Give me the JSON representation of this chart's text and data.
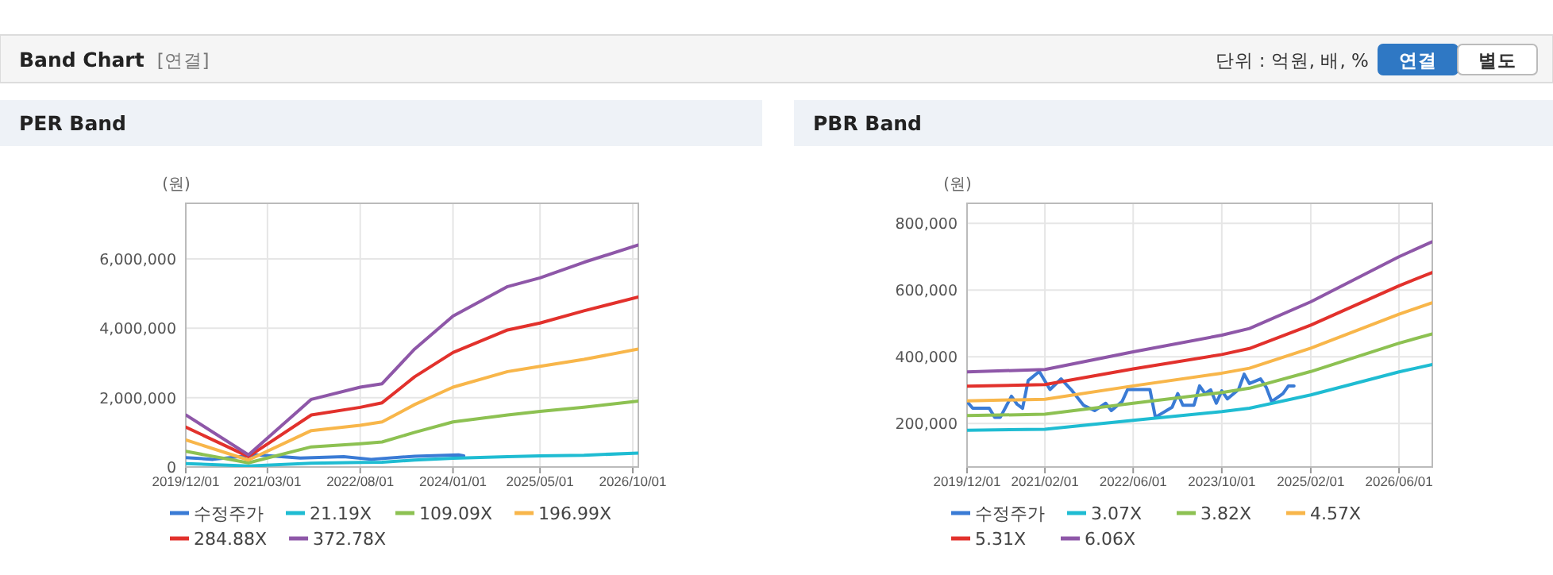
{
  "chart_data": [
    {
      "type": "other",
      "title": "Band Chart",
      "subtitle": "[연결]",
      "annotations": [
        "단위 : 억원, 배, %",
        "연결",
        "별도"
      ]
    },
    {
      "type": "line",
      "title": "PER Band",
      "ylabel": "(원)",
      "grid": true,
      "legend": "bottom",
      "marker": "none",
      "line_style": "solid",
      "xlim": [
        "2019-12-01",
        "2026-11-01"
      ],
      "xticks": [
        {
          "value": "2019-12-01",
          "label": "2019/12/01"
        },
        {
          "value": "2021-03-01",
          "label": "2021/03/01"
        },
        {
          "value": "2022-08-01",
          "label": "2022/08/01"
        },
        {
          "value": "2024-01-01",
          "label": "2024/01/01"
        },
        {
          "value": "2025-05-01",
          "label": "2025/05/01"
        },
        {
          "value": "2026-10-01",
          "label": "2026/10/01"
        }
      ],
      "ylim": [
        0,
        7600000
      ],
      "yticks": [
        0,
        {
          "value": 2000000,
          "label": "2,000,000"
        },
        {
          "value": 4000000,
          "label": "4,000,000"
        },
        {
          "value": 6000000,
          "label": "6,000,000"
        }
      ],
      "series": [
        {
          "name": "수정주가",
          "color": "#3a7bd5",
          "x": [
            "2019-12-01",
            "2020-05-01",
            "2021-01-01",
            "2021-09-01",
            "2022-05-01",
            "2022-10-01",
            "2023-06-01",
            "2024-02-01",
            "2024-03-01"
          ],
          "values": [
            270000,
            220000,
            350000,
            260000,
            300000,
            220000,
            310000,
            350000,
            320000
          ]
        },
        {
          "name": "21.19X",
          "color": "#1fbcd2",
          "x": [
            "2019-12-01",
            "2020-11-15",
            "2021-11-01",
            "2022-08-01",
            "2022-12-01",
            "2023-06-01",
            "2024-01-01",
            "2024-11-01",
            "2025-05-01",
            "2026-01-01",
            "2026-11-01"
          ],
          "values": [
            100000,
            30000,
            110000,
            130000,
            140000,
            200000,
            250000,
            300000,
            320000,
            340000,
            400000
          ]
        },
        {
          "name": "109.09X",
          "color": "#8dc152",
          "x": [
            "2019-12-01",
            "2020-11-15",
            "2021-11-01",
            "2022-08-01",
            "2022-12-01",
            "2023-06-01",
            "2024-01-01",
            "2024-11-01",
            "2025-05-01",
            "2026-01-01",
            "2026-11-01"
          ],
          "values": [
            450000,
            120000,
            580000,
            670000,
            720000,
            1000000,
            1300000,
            1500000,
            1600000,
            1720000,
            1900000
          ]
        },
        {
          "name": "196.99X",
          "color": "#f8b64a",
          "x": [
            "2019-12-01",
            "2020-11-15",
            "2021-11-01",
            "2022-08-01",
            "2022-12-01",
            "2023-06-01",
            "2024-01-01",
            "2024-11-01",
            "2025-05-01",
            "2026-01-01",
            "2026-11-01"
          ],
          "values": [
            780000,
            200000,
            1050000,
            1200000,
            1300000,
            1800000,
            2300000,
            2750000,
            2900000,
            3100000,
            3400000
          ]
        },
        {
          "name": "284.88X",
          "color": "#e2312c",
          "x": [
            "2019-12-01",
            "2020-11-15",
            "2021-11-01",
            "2022-08-01",
            "2022-12-01",
            "2023-06-01",
            "2024-01-01",
            "2024-11-01",
            "2025-05-01",
            "2026-01-01",
            "2026-11-01"
          ],
          "values": [
            1150000,
            300000,
            1500000,
            1720000,
            1850000,
            2600000,
            3300000,
            3950000,
            4150000,
            4500000,
            4900000
          ]
        },
        {
          "name": "372.78X",
          "color": "#8e57a8",
          "x": [
            "2019-12-01",
            "2020-11-15",
            "2021-11-01",
            "2022-08-01",
            "2022-12-01",
            "2023-06-01",
            "2024-01-01",
            "2024-11-01",
            "2025-05-01",
            "2026-01-01",
            "2026-11-01"
          ],
          "values": [
            1500000,
            350000,
            1950000,
            2300000,
            2400000,
            3400000,
            4350000,
            5200000,
            5450000,
            5900000,
            6400000
          ]
        }
      ]
    },
    {
      "type": "line",
      "title": "PBR Band",
      "ylabel": "(원)",
      "grid": true,
      "legend": "bottom",
      "marker": "none",
      "line_style": "solid",
      "xlim": [
        "2019-12-01",
        "2026-12-01"
      ],
      "xticks": [
        {
          "value": "2019-12-01",
          "label": "2019/12/01"
        },
        {
          "value": "2021-02-01",
          "label": "2021/02/01"
        },
        {
          "value": "2022-06-01",
          "label": "2022/06/01"
        },
        {
          "value": "2023-10-01",
          "label": "2023/10/01"
        },
        {
          "value": "2025-02-01",
          "label": "2025/02/01"
        },
        {
          "value": "2026-06-01",
          "label": "2026/06/01"
        }
      ],
      "ylim": [
        70000,
        860000
      ],
      "yticks": [
        {
          "value": 200000,
          "label": "200,000"
        },
        {
          "value": 400000,
          "label": "400,000"
        },
        {
          "value": 600000,
          "label": "600,000"
        },
        {
          "value": 800000,
          "label": "800,000"
        }
      ],
      "series": [
        {
          "name": "수정주가",
          "color": "#3a7bd5",
          "x": [
            "2019-12-01",
            "2020-01-01",
            "2020-04-01",
            "2020-05-01",
            "2020-06-01",
            "2020-08-01",
            "2020-09-01",
            "2020-10-01",
            "2020-11-01",
            "2021-01-01",
            "2021-03-01",
            "2021-05-01",
            "2021-07-01",
            "2021-09-01",
            "2021-11-01",
            "2022-01-01",
            "2022-02-01",
            "2022-04-01",
            "2022-05-01",
            "2022-09-01",
            "2022-10-01",
            "2023-01-01",
            "2023-02-01",
            "2023-03-01",
            "2023-05-01",
            "2023-06-01",
            "2023-07-01",
            "2023-08-01",
            "2023-09-01",
            "2023-10-01",
            "2023-11-01",
            "2024-01-01",
            "2024-02-01",
            "2024-03-01",
            "2024-05-01",
            "2024-06-01",
            "2024-07-01",
            "2024-09-01",
            "2024-10-01",
            "2024-11-01"
          ],
          "values": [
            266000,
            246000,
            246000,
            219000,
            219000,
            282000,
            258000,
            246000,
            329000,
            356000,
            302000,
            334000,
            298000,
            255000,
            239000,
            261000,
            239000,
            266000,
            302000,
            302000,
            219000,
            249000,
            290000,
            255000,
            255000,
            313000,
            290000,
            301000,
            261000,
            298000,
            274000,
            302000,
            348000,
            320000,
            334000,
            309000,
            266000,
            290000,
            313000,
            313000
          ]
        },
        {
          "name": "3.07X",
          "color": "#1fbcd2",
          "x": [
            "2019-12-01",
            "2021-02-01",
            "2022-06-01",
            "2023-10-01",
            "2024-03-01",
            "2025-02-01",
            "2026-06-01",
            "2026-12-01"
          ],
          "values": [
            180000,
            183000,
            210000,
            236000,
            246000,
            286000,
            355000,
            377000
          ]
        },
        {
          "name": "3.82X",
          "color": "#8dc152",
          "x": [
            "2019-12-01",
            "2021-02-01",
            "2022-06-01",
            "2023-10-01",
            "2024-03-01",
            "2025-02-01",
            "2026-06-01",
            "2026-12-01"
          ],
          "values": [
            224000,
            228000,
            261000,
            293000,
            306000,
            356000,
            441000,
            469000
          ]
        },
        {
          "name": "4.57X",
          "color": "#f8b64a",
          "x": [
            "2019-12-01",
            "2021-02-01",
            "2022-06-01",
            "2023-10-01",
            "2024-03-01",
            "2025-02-01",
            "2026-06-01",
            "2026-12-01"
          ],
          "values": [
            268000,
            273000,
            313000,
            351000,
            366000,
            426000,
            528000,
            562000
          ]
        },
        {
          "name": "5.31X",
          "color": "#e2312c",
          "x": [
            "2019-12-01",
            "2021-02-01",
            "2022-06-01",
            "2023-10-01",
            "2024-03-01",
            "2025-02-01",
            "2026-06-01",
            "2026-12-01"
          ],
          "values": [
            312000,
            317000,
            364000,
            407000,
            425000,
            495000,
            613000,
            653000
          ]
        },
        {
          "name": "6.06X",
          "color": "#8e57a8",
          "x": [
            "2019-12-01",
            "2021-02-01",
            "2022-06-01",
            "2023-10-01",
            "2024-03-01",
            "2025-02-01",
            "2026-06-01",
            "2026-12-01"
          ],
          "values": [
            355000,
            362000,
            415000,
            465000,
            485000,
            565000,
            700000,
            745000
          ]
        }
      ]
    }
  ]
}
